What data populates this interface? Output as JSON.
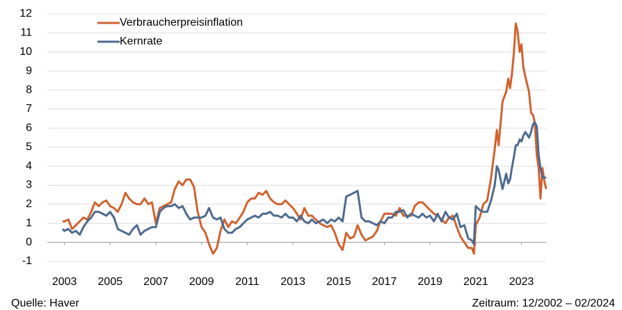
{
  "chart_data": {
    "type": "line",
    "source": "Quelle: Haver",
    "period": "Zeitraum: 12/2002 – 02/2024",
    "x": [
      2002.92,
      2003.0,
      2003.17,
      2003.33,
      2003.5,
      2003.67,
      2003.83,
      2004.0,
      2004.17,
      2004.33,
      2004.5,
      2004.67,
      2004.83,
      2005.0,
      2005.17,
      2005.33,
      2005.5,
      2005.67,
      2005.83,
      2006.0,
      2006.17,
      2006.33,
      2006.5,
      2006.67,
      2006.83,
      2007.0,
      2007.17,
      2007.33,
      2007.5,
      2007.67,
      2007.83,
      2008.0,
      2008.17,
      2008.33,
      2008.5,
      2008.67,
      2008.83,
      2009.0,
      2009.17,
      2009.33,
      2009.5,
      2009.67,
      2009.83,
      2010.0,
      2010.17,
      2010.33,
      2010.5,
      2010.67,
      2010.83,
      2011.0,
      2011.17,
      2011.33,
      2011.5,
      2011.67,
      2011.83,
      2012.0,
      2012.17,
      2012.33,
      2012.5,
      2012.67,
      2012.83,
      2013.0,
      2013.17,
      2013.33,
      2013.5,
      2013.67,
      2013.83,
      2014.0,
      2014.17,
      2014.33,
      2014.5,
      2014.67,
      2014.83,
      2015.0,
      2015.17,
      2015.33,
      2015.5,
      2015.67,
      2015.83,
      2016.0,
      2016.17,
      2016.33,
      2016.5,
      2016.67,
      2016.83,
      2017.0,
      2017.17,
      2017.33,
      2017.5,
      2017.67,
      2017.83,
      2018.0,
      2018.17,
      2018.33,
      2018.5,
      2018.67,
      2018.83,
      2019.0,
      2019.17,
      2019.33,
      2019.5,
      2019.67,
      2019.83,
      2020.0,
      2020.17,
      2020.33,
      2020.5,
      2020.67,
      2020.83,
      2020.92,
      2021.0,
      2021.17,
      2021.33,
      2021.5,
      2021.67,
      2021.83,
      2021.92,
      2022.0,
      2022.17,
      2022.33,
      2022.42,
      2022.5,
      2022.58,
      2022.67,
      2022.75,
      2022.83,
      2022.92,
      2023.0,
      2023.08,
      2023.17,
      2023.33,
      2023.42,
      2023.5,
      2023.58,
      2023.67,
      2023.75,
      2023.83,
      2023.92,
      2024.0,
      2024.08
    ],
    "series": [
      {
        "name": "Verbraucherpreisinflation",
        "color": "#d0622f",
        "values": [
          1.1,
          1.1,
          1.2,
          0.7,
          0.9,
          1.1,
          1.3,
          1.2,
          1.6,
          2.1,
          1.9,
          2.1,
          2.2,
          1.9,
          1.8,
          1.6,
          2.0,
          2.6,
          2.3,
          2.1,
          2.0,
          2.0,
          2.3,
          2.0,
          2.1,
          1.0,
          1.8,
          1.9,
          2.0,
          2.1,
          2.8,
          3.2,
          3.0,
          3.3,
          3.3,
          2.9,
          1.6,
          0.8,
          0.5,
          -0.1,
          -0.6,
          -0.3,
          0.6,
          1.2,
          0.8,
          1.1,
          1.0,
          1.3,
          1.6,
          2.1,
          2.3,
          2.3,
          2.6,
          2.5,
          2.7,
          2.3,
          2.1,
          2.0,
          2.0,
          2.2,
          2.0,
          1.8,
          1.5,
          1.2,
          1.8,
          1.4,
          1.4,
          1.2,
          1.0,
          0.9,
          0.8,
          0.9,
          0.5,
          -0.1,
          -0.4,
          0.5,
          0.2,
          0.3,
          0.9,
          0.4,
          0.1,
          0.2,
          0.3,
          0.6,
          1.1,
          1.5,
          1.5,
          1.5,
          1.4,
          1.8,
          1.4,
          1.4,
          1.4,
          1.9,
          2.1,
          2.1,
          1.9,
          1.7,
          1.5,
          1.4,
          1.2,
          1.0,
          1.3,
          1.4,
          0.8,
          0.3,
          0.0,
          -0.3,
          -0.3,
          -0.6,
          0.9,
          1.3,
          2.0,
          2.2,
          3.4,
          4.9,
          5.9,
          5.1,
          7.4,
          7.9,
          8.6,
          8.1,
          8.8,
          10.0,
          11.5,
          11.1,
          10.0,
          10.4,
          9.2,
          8.7,
          7.9,
          6.8,
          6.7,
          6.3,
          4.6,
          3.9,
          2.3,
          3.9,
          3.2,
          2.8
        ]
      },
      {
        "name": "Kernrate",
        "color": "#4e6a8f",
        "values": [
          0.7,
          0.6,
          0.7,
          0.5,
          0.6,
          0.4,
          0.8,
          1.1,
          1.3,
          1.6,
          1.6,
          1.5,
          1.4,
          1.6,
          1.3,
          0.7,
          0.6,
          0.5,
          0.4,
          0.7,
          0.9,
          0.4,
          0.6,
          0.7,
          0.8,
          0.8,
          1.6,
          1.8,
          1.9,
          1.9,
          2.0,
          1.8,
          1.9,
          1.5,
          1.2,
          1.3,
          1.3,
          1.3,
          1.4,
          1.8,
          1.3,
          1.2,
          1.3,
          0.7,
          0.5,
          0.5,
          0.7,
          0.8,
          1.0,
          1.2,
          1.3,
          1.4,
          1.3,
          1.5,
          1.5,
          1.6,
          1.4,
          1.4,
          1.3,
          1.5,
          1.3,
          1.3,
          1.1,
          1.4,
          1.1,
          1.0,
          1.2,
          1.0,
          1.1,
          1.2,
          1.0,
          1.2,
          1.1,
          1.3,
          1.1,
          2.4,
          2.5,
          2.6,
          2.7,
          1.3,
          1.1,
          1.1,
          1.0,
          0.9,
          1.1,
          1.0,
          1.3,
          1.3,
          1.6,
          1.6,
          1.7,
          1.3,
          1.5,
          1.4,
          1.3,
          1.5,
          1.3,
          1.4,
          1.1,
          1.5,
          1.1,
          1.6,
          1.3,
          1.2,
          1.5,
          0.8,
          0.9,
          0.2,
          0.1,
          -0.1,
          1.9,
          1.7,
          1.6,
          1.6,
          2.2,
          3.0,
          4.0,
          3.8,
          2.8,
          3.6,
          3.1,
          3.3,
          3.9,
          4.5,
          5.1,
          5.1,
          5.4,
          5.3,
          5.6,
          5.8,
          5.5,
          5.8,
          6.2,
          6.3,
          6.1,
          4.6,
          3.9,
          3.4,
          3.4,
          3.4
        ]
      }
    ],
    "xlim": [
      2002.25,
      2024.08
    ],
    "xticks": [
      2003,
      2005,
      2007,
      2009,
      2011,
      2013,
      2015,
      2017,
      2019,
      2021,
      2023
    ],
    "ylim": [
      -1,
      12
    ],
    "yticks": [
      -1,
      0,
      1,
      2,
      3,
      4,
      5,
      6,
      7,
      8,
      9,
      10,
      11,
      12
    ],
    "grid": true,
    "legend": "top-left"
  }
}
